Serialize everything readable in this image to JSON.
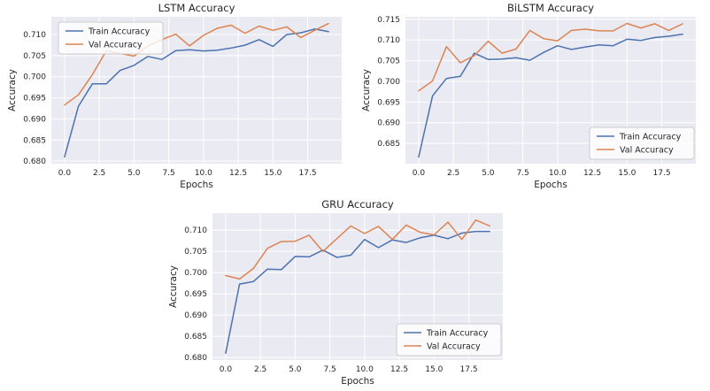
{
  "page": {
    "background_color": "#ffffff",
    "description_colors": {
      "axes_background": "#eaeaf2",
      "grid_color": "#ffffff",
      "text_color": "#262626",
      "train_color": "#4c72b0",
      "val_color": "#dd8452",
      "legend_background": "#fbfbfd",
      "legend_border": "#cccccc"
    }
  },
  "chart_data": [
    {
      "id": "lstm",
      "type": "line",
      "title": "LSTM Accuracy",
      "xlabel": "Epochs",
      "ylabel": "Accuracy",
      "legend_position": "upper left",
      "grid": true,
      "x": [
        0,
        1,
        2,
        3,
        4,
        5,
        6,
        7,
        8,
        9,
        10,
        11,
        12,
        13,
        14,
        15,
        16,
        17,
        18,
        19
      ],
      "x_ticks": [
        0.0,
        2.5,
        5.0,
        7.5,
        10.0,
        12.5,
        15.0,
        17.5
      ],
      "y_ticks": [
        0.68,
        0.685,
        0.69,
        0.695,
        0.7,
        0.705,
        0.71
      ],
      "xlim": [
        -0.95,
        19.95
      ],
      "ylim": [
        0.6794,
        0.7142
      ],
      "series": [
        {
          "name": "Train Accuracy",
          "color": "#4c72b0",
          "values": [
            0.681,
            0.693,
            0.6983,
            0.6983,
            0.7015,
            0.7027,
            0.7048,
            0.7041,
            0.7062,
            0.7064,
            0.7061,
            0.7063,
            0.7068,
            0.7075,
            0.7088,
            0.7072,
            0.71,
            0.7104,
            0.7113,
            0.7107
          ]
        },
        {
          "name": "Val Accuracy",
          "color": "#dd8452",
          "values": [
            0.6933,
            0.6957,
            0.7005,
            0.7061,
            0.7055,
            0.7049,
            0.7073,
            0.7088,
            0.7101,
            0.7073,
            0.7098,
            0.7115,
            0.7122,
            0.7103,
            0.712,
            0.711,
            0.7118,
            0.7093,
            0.711,
            0.7126
          ]
        }
      ]
    },
    {
      "id": "bilstm",
      "type": "line",
      "title": "BiLSTM Accuracy",
      "xlabel": "Epochs",
      "ylabel": "Accuracy",
      "legend_position": "lower right",
      "grid": true,
      "x": [
        0,
        1,
        2,
        3,
        4,
        5,
        6,
        7,
        8,
        9,
        10,
        11,
        12,
        13,
        14,
        15,
        16,
        17,
        18,
        19
      ],
      "x_ticks": [
        0.0,
        2.5,
        5.0,
        7.5,
        10.0,
        12.5,
        15.0,
        17.5
      ],
      "y_ticks": [
        0.685,
        0.69,
        0.695,
        0.7,
        0.705,
        0.71,
        0.715
      ],
      "xlim": [
        -0.95,
        19.95
      ],
      "ylim": [
        0.6801,
        0.7156
      ],
      "series": [
        {
          "name": "Train Accuracy",
          "color": "#4c72b0",
          "values": [
            0.6817,
            0.6965,
            0.7007,
            0.7012,
            0.7068,
            0.7053,
            0.7054,
            0.7057,
            0.7051,
            0.707,
            0.7086,
            0.7077,
            0.7083,
            0.7088,
            0.7086,
            0.7102,
            0.7099,
            0.7106,
            0.7109,
            0.7114
          ]
        },
        {
          "name": "Val Accuracy",
          "color": "#dd8452",
          "values": [
            0.6977,
            0.7001,
            0.7084,
            0.7045,
            0.7062,
            0.7097,
            0.7068,
            0.7078,
            0.7123,
            0.7103,
            0.7098,
            0.7123,
            0.7126,
            0.7122,
            0.7122,
            0.714,
            0.7129,
            0.7139,
            0.7123,
            0.7139
          ]
        }
      ]
    },
    {
      "id": "gru",
      "type": "line",
      "title": "GRU Accuracy",
      "xlabel": "Epochs",
      "ylabel": "Accuracy",
      "legend_position": "lower right",
      "grid": true,
      "x": [
        0,
        1,
        2,
        3,
        4,
        5,
        6,
        7,
        8,
        9,
        10,
        11,
        12,
        13,
        14,
        15,
        16,
        17,
        18,
        19
      ],
      "x_ticks": [
        0.0,
        2.5,
        5.0,
        7.5,
        10.0,
        12.5,
        15.0,
        17.5
      ],
      "y_ticks": [
        0.68,
        0.685,
        0.69,
        0.695,
        0.7,
        0.705,
        0.71
      ],
      "xlim": [
        -0.95,
        19.95
      ],
      "ylim": [
        0.6794,
        0.714
      ],
      "series": [
        {
          "name": "Train Accuracy",
          "color": "#4c72b0",
          "values": [
            0.681,
            0.6973,
            0.6979,
            0.7008,
            0.7007,
            0.7038,
            0.7037,
            0.7053,
            0.7036,
            0.7041,
            0.7078,
            0.7059,
            0.7077,
            0.7071,
            0.7082,
            0.7088,
            0.708,
            0.7093,
            0.7097,
            0.7097
          ]
        },
        {
          "name": "Val Accuracy",
          "color": "#dd8452",
          "values": [
            0.6993,
            0.6985,
            0.701,
            0.7057,
            0.7073,
            0.7074,
            0.7088,
            0.705,
            0.708,
            0.711,
            0.7092,
            0.7109,
            0.7078,
            0.7112,
            0.7095,
            0.7089,
            0.7119,
            0.7078,
            0.7124,
            0.711
          ]
        }
      ]
    }
  ]
}
